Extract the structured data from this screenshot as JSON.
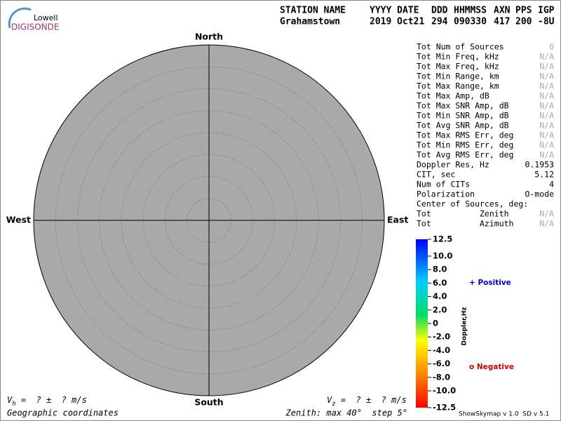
{
  "logo": {
    "line1": "Lowell",
    "line2": "DIGISONDE"
  },
  "header": {
    "labels": [
      "STATION NAME",
      "YYYY DATE",
      "DDD",
      "HHMMSS",
      "AXN",
      "PPS",
      "IGP"
    ],
    "values": [
      "Grahamstown",
      "2019 Oct21",
      "294",
      "090330",
      "417",
      "200",
      "-8U"
    ]
  },
  "chart_data": {
    "type": "skymap",
    "directions": {
      "north": "North",
      "south": "South",
      "east": "East",
      "west": "West"
    },
    "zenith_max": 40,
    "zenith_step": 5,
    "background": "#a9a9a9",
    "zenith_label": "Zenith: max 40°  step 5°",
    "coordinates": "Geographic coordinates",
    "vh": {
      "symbol": "V",
      "sub": "h",
      "rest": " =  ? ±  ? m/s"
    },
    "vz": {
      "symbol": "V",
      "sub": "z",
      "rest": " =  ? ±  ? m/s"
    },
    "colorbar": {
      "title": "Doppler,Hz",
      "ylim": [
        -12.5,
        12.5
      ],
      "ticks": [
        12.5,
        {
          "value": 10,
          "label": "10.0"
        },
        {
          "value": 8,
          "label": "8.0"
        },
        {
          "value": 6,
          "label": "6.0"
        },
        {
          "value": 4,
          "label": "4.0"
        },
        {
          "value": 2,
          "label": "2.0"
        },
        0,
        {
          "value": -2,
          "label": "-2.0"
        },
        {
          "value": -4,
          "label": "-4.0"
        },
        {
          "value": -6,
          "label": "-6.0"
        },
        {
          "value": -8,
          "label": "-8.0"
        },
        {
          "value": -10,
          "label": "-10.0"
        },
        -12.5
      ]
    },
    "legend": {
      "positive": {
        "label": "+ Positive",
        "color": "#0000cc"
      },
      "negative": {
        "label": "o Negative",
        "color": "#cc0000"
      }
    }
  },
  "stats": [
    {
      "label": "Tot Num of Sources",
      "value": 0,
      "muted": true
    },
    {
      "label": "Tot Min Freq, kHz",
      "value": "N/A",
      "muted": true
    },
    {
      "label": "Tot Max Freq, kHz",
      "value": "N/A",
      "muted": true
    },
    {
      "label": "Tot Min Range, km",
      "value": "N/A",
      "muted": true
    },
    {
      "label": "Tot Max Range, km",
      "value": "N/A",
      "muted": true
    },
    {
      "label": "Tot Max Amp, dB",
      "value": "N/A",
      "muted": true
    },
    {
      "label": "Tot Max SNR Amp, dB",
      "value": "N/A",
      "muted": true
    },
    {
      "label": "Tot Min SNR Amp, dB",
      "value": "N/A",
      "muted": true
    },
    {
      "label": "Tot Avg SNR Amp, dB",
      "value": "N/A",
      "muted": true
    },
    {
      "label": "Tot Max RMS Err, deg",
      "value": "N/A",
      "muted": true
    },
    {
      "label": "Tot Min RMS Err, deg",
      "value": "N/A",
      "muted": true
    },
    {
      "label": "Tot Avg RMS Err, deg",
      "value": "N/A",
      "muted": true
    },
    {
      "label": "Doppler Res, Hz",
      "value": 0.1953,
      "muted": false
    },
    {
      "label": "CIT, sec",
      "value": 5.12,
      "muted": false
    },
    {
      "label": "Num of CITs",
      "value": 4,
      "muted": false
    },
    {
      "label": "Polarization",
      "value": "O-mode",
      "muted": false
    },
    {
      "label": "Center of Sources, deg:"
    },
    {
      "label": "Tot          Zenith",
      "value": "N/A",
      "muted": true
    },
    {
      "label": "Tot          Azimuth",
      "value": "N/A",
      "muted": true
    }
  ],
  "version": "ShowSkymap v 1.0  SD v 5.1"
}
